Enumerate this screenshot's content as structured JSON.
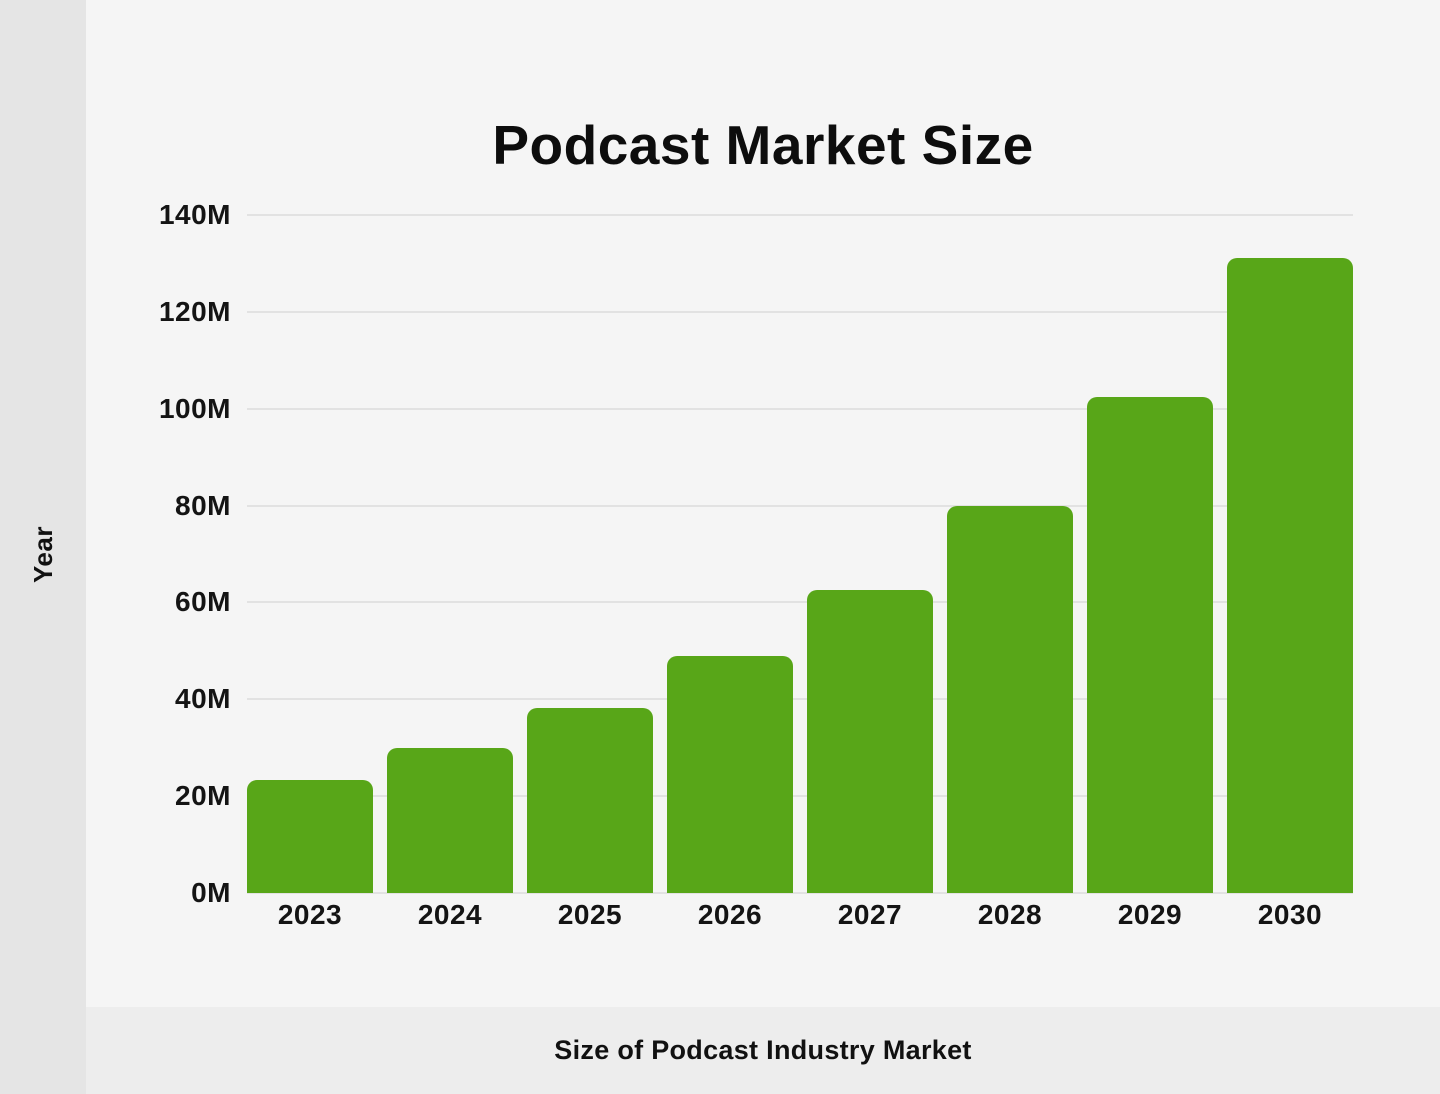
{
  "title": "Podcast Market Size",
  "left_axis_label": "Year",
  "footer_caption": "Size of Podcast Industry Market",
  "colors": {
    "bar": "#58a618",
    "page_background": "#f5f5f5",
    "left_strip": "#e5e5e5",
    "bottom_strip": "#ededed",
    "gridline": "#e2e2e2",
    "text": "#111111"
  },
  "chart_data": {
    "type": "bar",
    "title": "Podcast Market Size",
    "categories": [
      "2023",
      "2024",
      "2025",
      "2026",
      "2027",
      "2028",
      "2029",
      "2030"
    ],
    "values": [
      23.4,
      29.9,
      38.3,
      48.9,
      62.6,
      80.0,
      102.5,
      131.2
    ],
    "unit": "M",
    "xlabel": "Size of Podcast Industry Market",
    "ylabel": "Year",
    "ylim": [
      0,
      140
    ],
    "ytick_step": 20,
    "ytick_labels": [
      "0M",
      "20M",
      "40M",
      "60M",
      "80M",
      "100M",
      "120M",
      "140M"
    ],
    "grid": "horizontal",
    "legend": "none",
    "bar_color": "#58a618"
  }
}
